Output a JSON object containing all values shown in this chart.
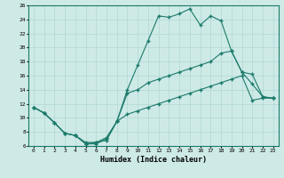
{
  "xlabel": "Humidex (Indice chaleur)",
  "bg_color": "#ceeae7",
  "line_color": "#1a7a6a",
  "grid_color": "#b0d8d4",
  "xlim": [
    -0.5,
    23.5
  ],
  "ylim": [
    6,
    26
  ],
  "xticks": [
    0,
    1,
    2,
    3,
    4,
    5,
    6,
    7,
    8,
    9,
    10,
    11,
    12,
    13,
    14,
    15,
    16,
    17,
    18,
    19,
    20,
    21,
    22,
    23
  ],
  "yticks": [
    6,
    8,
    10,
    12,
    14,
    16,
    18,
    20,
    22,
    24,
    26
  ],
  "line1_x": [
    0,
    1,
    2,
    3,
    4,
    5,
    6,
    7,
    8,
    9,
    10,
    11,
    12,
    13,
    14,
    15,
    16,
    17,
    18,
    19,
    20,
    21,
    22,
    23
  ],
  "line1_y": [
    11.5,
    10.7,
    9.3,
    7.8,
    7.5,
    6.3,
    6.3,
    7.0,
    9.5,
    14.0,
    17.5,
    21.0,
    24.5,
    24.3,
    24.8,
    25.5,
    23.2,
    24.5,
    23.8,
    19.5,
    16.5,
    14.8,
    13.0,
    12.8
  ],
  "line2_x": [
    0,
    1,
    2,
    3,
    4,
    5,
    6,
    7,
    8,
    9,
    10,
    11,
    12,
    13,
    14,
    15,
    16,
    17,
    18,
    19,
    20,
    21,
    22,
    23
  ],
  "line2_y": [
    11.5,
    10.7,
    9.3,
    7.8,
    7.5,
    6.5,
    6.5,
    7.2,
    9.5,
    13.5,
    14.0,
    15.0,
    15.5,
    16.0,
    16.5,
    17.0,
    17.5,
    18.0,
    19.2,
    19.5,
    16.5,
    16.2,
    13.0,
    12.8
  ],
  "line3_x": [
    0,
    1,
    2,
    3,
    4,
    5,
    6,
    7,
    8,
    9,
    10,
    11,
    12,
    13,
    14,
    15,
    16,
    17,
    18,
    19,
    20,
    21,
    22,
    23
  ],
  "line3_y": [
    11.5,
    10.7,
    9.3,
    7.8,
    7.5,
    6.3,
    6.5,
    6.8,
    9.5,
    10.5,
    11.0,
    11.5,
    12.0,
    12.5,
    13.0,
    13.5,
    14.0,
    14.5,
    15.0,
    15.5,
    16.0,
    12.5,
    12.8,
    12.8
  ]
}
